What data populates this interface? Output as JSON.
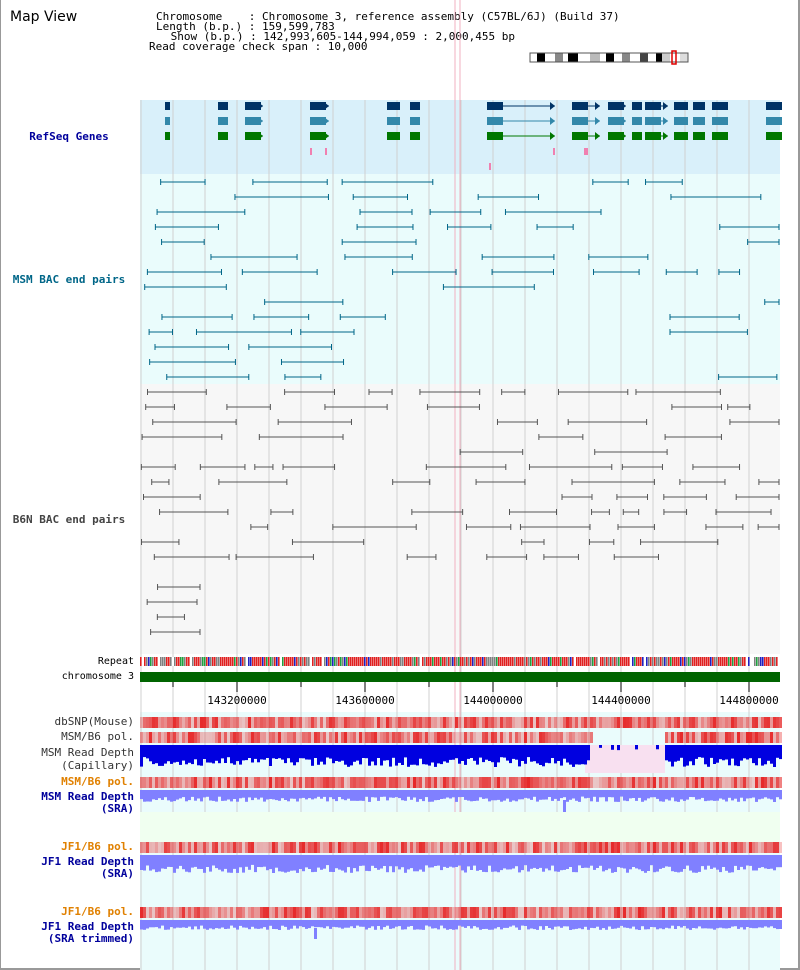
{
  "page": {
    "title": "Map View"
  },
  "info": {
    "chromosome_line": "Chromosome    : Chromosome 3, reference assembly (C57BL/6J) (Build 37)",
    "length_line": "Length (b.p.) : 159,599,783",
    "show_line": " Show (b.p.) : 142,993,605-144,994,059 : 2,000,455 bp",
    "span_line": "Read coverage check span : 10,000"
  },
  "tracks": {
    "refseq": {
      "label": "RefSeq Genes",
      "color": "#00009c"
    },
    "msm_bac": {
      "label": "MSM BAC end pairs",
      "color": "#006688"
    },
    "b6n_bac": {
      "label": "B6N BAC end pairs",
      "color": "#444444"
    },
    "repeat": {
      "label": "Repeat"
    },
    "chrom": {
      "label": "chromosome 3",
      "color": "#006400"
    },
    "dbsnp": {
      "label": "dbSNP(Mouse)"
    },
    "msm_pol": {
      "label": "MSM/B6 pol."
    },
    "msm_depth_cap": {
      "label": "MSM Read Depth",
      "sub": "(Capillary)"
    },
    "msm_pol2": {
      "label": "MSM/B6 pol.",
      "color": "#e08000"
    },
    "msm_depth_sra": {
      "label": "MSM Read Depth",
      "sub": "(SRA)",
      "color": "#00009c"
    },
    "jf1_pol": {
      "label": "JF1/B6 pol.",
      "color": "#e08000"
    },
    "jf1_depth_sra": {
      "label": "JF1 Read Depth",
      "sub": "(SRA)",
      "color": "#00009c"
    },
    "jf1_pol2": {
      "label": "JF1/B6 pol.",
      "color": "#e08000"
    },
    "jf1_depth_trim": {
      "label": "JF1 Read Depth",
      "sub": "(SRA trimmed)",
      "color": "#00009c"
    }
  },
  "axis": {
    "ticks": [
      "143200000",
      "143600000",
      "144000000",
      "144400000",
      "144800000"
    ]
  },
  "colors": {
    "refseq_bg": "#d9f0fa",
    "bac_bg": "#eafcfc",
    "b6n_bg": "#f7f7f7",
    "snp": "#f08080",
    "depth": "#0000e0",
    "depth_light": "#8080ff"
  }
}
